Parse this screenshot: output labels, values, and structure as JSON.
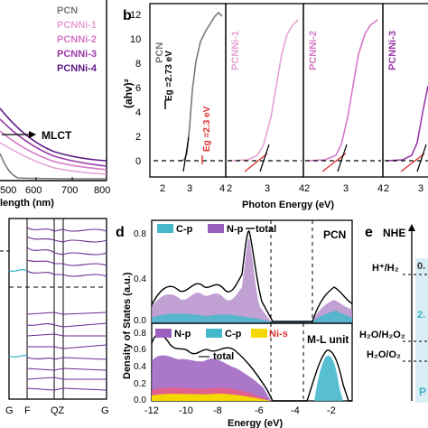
{
  "panel_a": {
    "legend": [
      {
        "label": "PCN",
        "color": "#7a7a7a"
      },
      {
        "label": "PCNNi-1",
        "color": "#e6a2d4"
      },
      {
        "label": "PCNNi-2",
        "color": "#d678c6"
      },
      {
        "label": "PCNNi-3",
        "color": "#9b3aa8"
      },
      {
        "label": "PCNNi-4",
        "color": "#5a1a82"
      }
    ],
    "annotation": "MLCT",
    "xticks": [
      "500",
      "600",
      "700",
      "800"
    ],
    "xtick_first": "500",
    "xlabel_partial": "length (nm)"
  },
  "panel_b": {
    "letter": "b",
    "ylabel": "(ahv)²",
    "yticks": [
      "0",
      "2",
      "4",
      "6",
      "8",
      "10",
      "12"
    ],
    "xlabel": "Photon Energy (eV)",
    "subpanels": [
      {
        "name": "PCN",
        "color": "#7a7a7a",
        "xticks": [
          "2",
          "3",
          "4"
        ]
      },
      {
        "name": "PCNNi-1",
        "color": "#e6a2d4",
        "xticks": [
          "2",
          "3",
          "4"
        ]
      },
      {
        "name": "PCNNi-2",
        "color": "#d678c6",
        "xticks": [
          "2",
          "3",
          "4"
        ]
      },
      {
        "name": "PCNNi-3",
        "color": "#9b3aa8",
        "xticks": [
          "2",
          "3"
        ]
      }
    ],
    "eg_pcn": "Eg =2.73 eV",
    "eg_ni": "Eg =2.3 eV"
  },
  "panel_c": {
    "xticks": [
      "G",
      "F",
      "QZ",
      "G"
    ]
  },
  "panel_d": {
    "letter": "d",
    "ylabel": "Density of States (a.u.)",
    "xlabel": "Energy (eV)",
    "xticks": [
      "-12",
      "-10",
      "-8",
      "-6",
      "-4",
      "-2"
    ],
    "top_yticks": [
      "0.0",
      "0.4",
      "0.8"
    ],
    "bot_yticks": [
      "0.0",
      "0.2",
      "0.4",
      "0.6",
      "0.8"
    ],
    "top_title": "PCN",
    "bot_title": "M-L unit",
    "top_legend": [
      "C-p",
      "N-p",
      "total"
    ],
    "bot_legend": [
      "N-p",
      "C-p",
      "Ni-s"
    ],
    "total_label": "total"
  },
  "panel_e": {
    "letter": "e",
    "title": "NHE",
    "levels": [
      "H⁺/H₂",
      "H₂O/H₂O₂",
      "H₂O/O₂"
    ],
    "values": [
      "0.",
      "2."
    ],
    "partial": "P"
  }
}
